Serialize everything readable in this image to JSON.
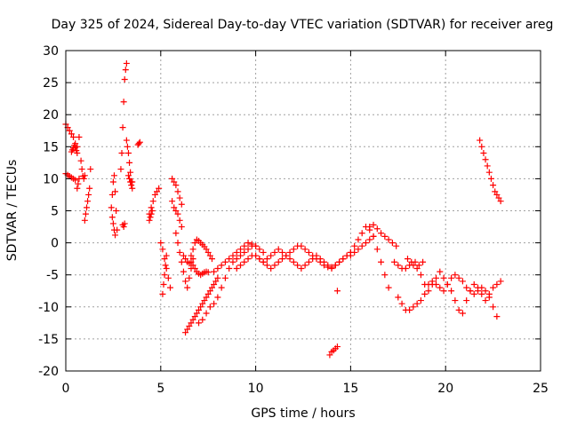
{
  "chart_data": {
    "type": "scatter",
    "title": "Day 325 of 2024, Sidereal Day-to-day VTEC variation (SDTVAR) for receiver areg",
    "xlabel": "GPS time / hours",
    "ylabel": "SDTVAR / TECUs",
    "xlim": [
      0,
      25
    ],
    "ylim": [
      -20,
      30
    ],
    "x_ticks": [
      0,
      5,
      10,
      15,
      20,
      25
    ],
    "y_ticks": [
      -20,
      -15,
      -10,
      -5,
      0,
      5,
      10,
      15,
      20,
      25,
      30
    ],
    "x_tick_labels": [
      "0",
      "5",
      "10",
      "15",
      "20",
      "25"
    ],
    "y_tick_labels": [
      "-20",
      "-15",
      "-10",
      "-5",
      "0",
      "5",
      "10",
      "15",
      "20",
      "25",
      "30"
    ],
    "grid": true,
    "marker": "+",
    "color": "#ff0000",
    "series": [
      {
        "name": "SDTVAR",
        "x": [
          0.0,
          0.1,
          0.2,
          0.3,
          0.4,
          0.5,
          0.6,
          0.7,
          0.0,
          0.1,
          0.2,
          0.3,
          0.4,
          0.5,
          0.3,
          0.35,
          0.4,
          0.45,
          0.5,
          0.55,
          0.6,
          0.8,
          0.85,
          0.9,
          0.95,
          1.0,
          0.6,
          0.65,
          0.7,
          1.0,
          1.05,
          1.1,
          1.15,
          1.2,
          1.25,
          1.3,
          2.4,
          2.45,
          2.5,
          2.55,
          2.6,
          2.65,
          2.7,
          2.45,
          2.5,
          2.55,
          2.6,
          2.9,
          2.95,
          3.0,
          3.05,
          3.1,
          3.15,
          3.2,
          3.0,
          3.05,
          3.1,
          3.2,
          3.25,
          3.3,
          3.35,
          3.4,
          3.45,
          3.5,
          3.3,
          3.35,
          3.4,
          3.45,
          3.5,
          3.8,
          3.85,
          3.9,
          4.4,
          4.5,
          4.6,
          4.7,
          4.8,
          4.9,
          4.4,
          4.45,
          4.5,
          4.55,
          5.0,
          5.1,
          5.2,
          5.3,
          5.4,
          5.5,
          5.6,
          5.7,
          5.8,
          5.9,
          6.0,
          6.1,
          5.1,
          5.15,
          5.2,
          5.25,
          5.3,
          5.8,
          5.9,
          6.0,
          6.1,
          6.2,
          6.3,
          6.4,
          6.5,
          6.6,
          6.7,
          6.8,
          6.9,
          7.0,
          7.1,
          7.2,
          7.3,
          7.4,
          7.5,
          5.6,
          5.7,
          5.8,
          5.9,
          6.0,
          6.1,
          6.2,
          6.3,
          6.4,
          6.5,
          6.6,
          6.7,
          6.3,
          6.4,
          6.5,
          6.6,
          6.7,
          6.8,
          6.9,
          7.0,
          7.1,
          7.2,
          7.3,
          7.4,
          7.5,
          7.6,
          7.7,
          7.8,
          7.9,
          8.0,
          6.6,
          6.7,
          6.8,
          6.9,
          7.0,
          7.1,
          7.2,
          7.3,
          7.4,
          7.5,
          7.6,
          7.7,
          7.0,
          7.2,
          7.4,
          7.6,
          7.8,
          8.0,
          8.2,
          8.4,
          8.6,
          8.8,
          9.0,
          9.2,
          9.4,
          9.6,
          9.8,
          10.0,
          10.2,
          10.4,
          7.8,
          8.0,
          8.2,
          8.4,
          8.6,
          8.8,
          9.0,
          9.2,
          9.4,
          9.6,
          9.8,
          10.0,
          9.0,
          9.2,
          9.4,
          9.6,
          9.8,
          10.0,
          10.2,
          10.4,
          10.6,
          10.8,
          11.0,
          11.2,
          11.4,
          11.6,
          11.8,
          12.0,
          12.2,
          12.4,
          12.6,
          12.8,
          13.0,
          13.2,
          13.4,
          13.6,
          13.8,
          14.0,
          14.2,
          14.4,
          14.6,
          14.8,
          15.0,
          10.0,
          10.2,
          10.4,
          10.6,
          10.8,
          11.0,
          11.2,
          11.4,
          11.6,
          11.8,
          12.0,
          12.2,
          12.4,
          12.6,
          12.8,
          13.0,
          13.2,
          13.4,
          13.6,
          13.8,
          14.0,
          14.2,
          14.4,
          14.6,
          14.8,
          15.0,
          15.2,
          15.4,
          15.6,
          15.8,
          16.0,
          16.2,
          13.9,
          14.0,
          14.1,
          14.2,
          14.3,
          14.3,
          15.0,
          15.2,
          15.4,
          15.6,
          15.8,
          16.0,
          16.2,
          16.4,
          16.6,
          16.8,
          17.0,
          16.0,
          16.2,
          16.4,
          16.6,
          16.8,
          17.0,
          17.2,
          17.4,
          17.3,
          17.5,
          17.7,
          17.9,
          18.1,
          18.3,
          18.5,
          18.7,
          18.9,
          19.1,
          19.3,
          19.5,
          19.7,
          19.9,
          20.1,
          20.3,
          20.5,
          20.7,
          20.9,
          21.1,
          21.3,
          21.5,
          21.7,
          21.9,
          22.1,
          22.3,
          22.5,
          22.7,
          22.9,
          17.5,
          17.7,
          17.9,
          18.1,
          18.3,
          18.5,
          18.7,
          18.9,
          19.1,
          19.3,
          19.5,
          19.7,
          19.9,
          20.1,
          20.3,
          20.5,
          20.7,
          20.9,
          21.1,
          21.3,
          21.5,
          21.7,
          21.9,
          22.1,
          22.3,
          22.5,
          22.7,
          18.0,
          18.2,
          18.4,
          18.6,
          18.8,
          21.8,
          21.9,
          22.0,
          22.1,
          22.2,
          22.3,
          22.4,
          22.5,
          22.6,
          22.7,
          22.8,
          22.9
        ],
        "y": [
          18.5,
          18.0,
          17.5,
          17.0,
          16.5,
          15.5,
          15.0,
          16.5,
          10.8,
          10.6,
          10.4,
          10.2,
          10.0,
          9.8,
          14.2,
          14.5,
          14.8,
          15.2,
          14.9,
          14.4,
          14.0,
          12.8,
          11.5,
          10.4,
          10.0,
          10.5,
          8.5,
          9.2,
          10.0,
          3.5,
          4.5,
          5.5,
          6.5,
          7.5,
          8.5,
          11.5,
          5.5,
          7.5,
          9.5,
          10.5,
          8.0,
          5.0,
          2.0,
          4.0,
          3.0,
          2.0,
          1.2,
          11.5,
          14.0,
          18.0,
          22.0,
          25.5,
          27.0,
          28.0,
          2.8,
          2.5,
          3.0,
          16.0,
          15.0,
          14.0,
          12.5,
          11.0,
          9.5,
          8.5,
          10.5,
          10.0,
          9.5,
          9.0,
          9.5,
          15.3,
          15.5,
          15.7,
          4.5,
          5.5,
          6.5,
          7.5,
          8.0,
          8.5,
          3.5,
          4.0,
          4.5,
          5.0,
          0.0,
          -1.0,
          -2.5,
          -4.0,
          -5.5,
          -7.0,
          6.5,
          5.5,
          5.0,
          4.5,
          3.5,
          2.5,
          -8.0,
          -6.5,
          -5.0,
          -3.5,
          -2.0,
          1.5,
          0.0,
          -1.5,
          -3.0,
          -4.5,
          -6.0,
          -7.0,
          -5.5,
          -4.0,
          -3.5,
          -4.0,
          -4.5,
          -4.8,
          -5.0,
          -4.8,
          -4.6,
          -4.5,
          -4.6,
          10.0,
          9.5,
          9.0,
          8.0,
          7.0,
          6.0,
          -2.0,
          -2.5,
          -3.0,
          -3.2,
          -3.0,
          -2.5,
          -14.0,
          -13.5,
          -13.0,
          -12.5,
          -12.0,
          -11.5,
          -11.0,
          -10.5,
          -10.0,
          -9.5,
          -9.0,
          -8.5,
          -8.0,
          -7.5,
          -7.0,
          -6.5,
          -6.0,
          -5.5,
          -2.0,
          -1.0,
          0.0,
          0.5,
          0.3,
          0.0,
          -0.3,
          -0.6,
          -1.0,
          -1.5,
          -2.0,
          -2.5,
          -12.5,
          -12.0,
          -11.0,
          -10.0,
          -9.5,
          -8.5,
          -7.0,
          -5.5,
          -4.0,
          -3.0,
          -2.5,
          -2.0,
          -1.5,
          -1.0,
          -0.5,
          -0.5,
          -1.0,
          -1.5,
          -4.5,
          -4.0,
          -3.5,
          -3.0,
          -2.5,
          -2.0,
          -1.5,
          -1.0,
          -0.5,
          0.0,
          -0.2,
          -0.5,
          -4.0,
          -3.5,
          -3.0,
          -2.5,
          -2.0,
          -2.0,
          -2.5,
          -3.0,
          -2.5,
          -2.0,
          -1.5,
          -1.0,
          -1.5,
          -2.0,
          -2.5,
          -3.0,
          -3.5,
          -4.0,
          -3.5,
          -3.0,
          -2.5,
          -2.0,
          -2.5,
          -3.0,
          -3.5,
          -3.8,
          -3.5,
          -3.0,
          -2.5,
          -2.0,
          -1.5,
          -2.0,
          -2.5,
          -3.0,
          -3.5,
          -4.0,
          -3.5,
          -3.0,
          -2.5,
          -2.0,
          -1.5,
          -1.0,
          -0.5,
          -0.5,
          -1.0,
          -1.5,
          -2.0,
          -2.5,
          -3.0,
          -3.5,
          -3.8,
          -4.0,
          -3.5,
          -3.0,
          -2.5,
          -2.0,
          -1.5,
          -0.5,
          0.5,
          1.5,
          2.5,
          2.0,
          1.0,
          -17.5,
          -17.0,
          -16.8,
          -16.5,
          -16.2,
          -7.5,
          -2.0,
          -1.5,
          -1.0,
          -0.5,
          0.0,
          0.5,
          1.0,
          -1.0,
          -3.0,
          -5.0,
          -7.0,
          2.5,
          2.8,
          2.2,
          1.5,
          1.0,
          0.5,
          0.0,
          -0.5,
          -3.0,
          -3.5,
          -4.0,
          -4.0,
          -3.5,
          -3.5,
          -4.0,
          -5.0,
          -6.5,
          -7.5,
          -6.5,
          -5.5,
          -4.5,
          -5.5,
          -6.5,
          -7.5,
          -9.0,
          -10.5,
          -11.0,
          -9.0,
          -7.5,
          -6.5,
          -7.0,
          -8.0,
          -9.0,
          -8.0,
          -7.0,
          -6.5,
          -6.0,
          -8.5,
          -9.5,
          -10.5,
          -10.5,
          -10.0,
          -9.5,
          -9.0,
          -8.0,
          -6.5,
          -6.0,
          -6.5,
          -7.0,
          -7.5,
          -6.5,
          -5.5,
          -5.0,
          -5.5,
          -6.0,
          -7.0,
          -7.5,
          -8.0,
          -7.5,
          -7.0,
          -7.5,
          -8.5,
          -10.0,
          -11.5,
          -2.5,
          -3.0,
          -3.0,
          -3.5,
          -3.0,
          16.0,
          15.0,
          14.0,
          13.0,
          12.0,
          11.0,
          10.0,
          9.0,
          8.0,
          7.5,
          7.0,
          6.5
        ]
      }
    ]
  }
}
